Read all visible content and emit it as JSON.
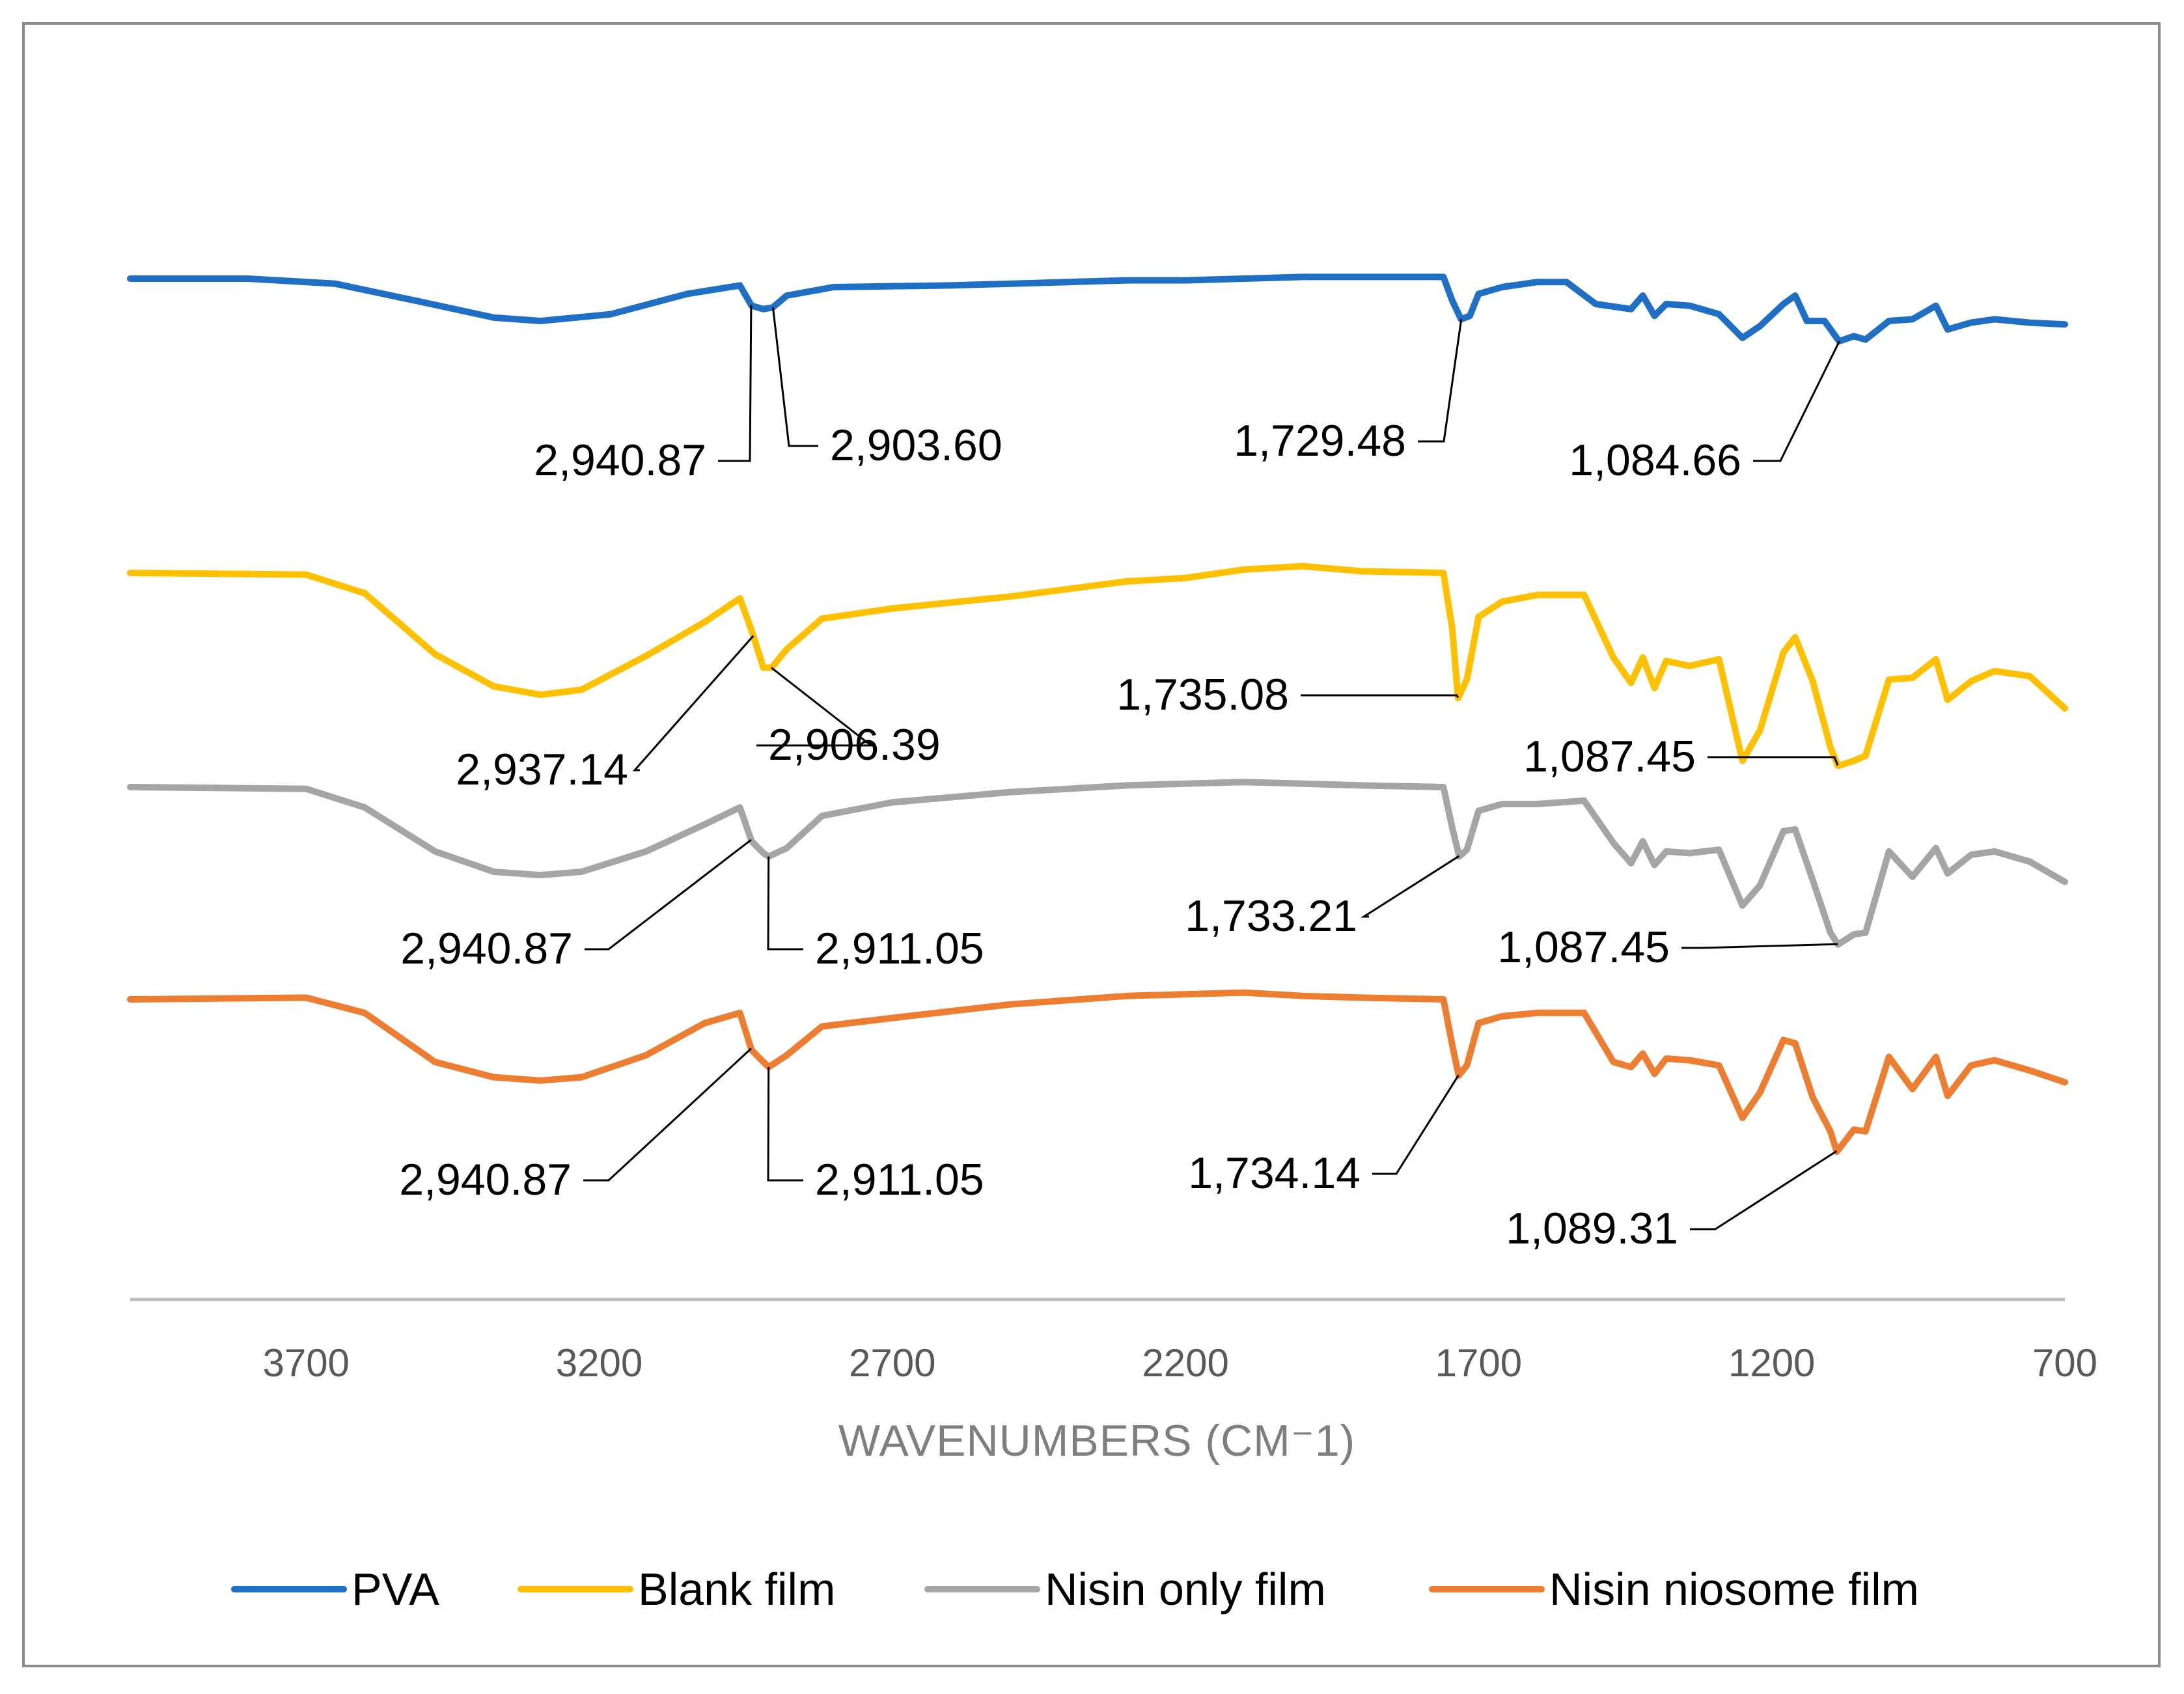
{
  "chart_data": {
    "type": "line",
    "title": "",
    "xlabel": "WAVENUMBERS  (CM⁻1)",
    "ylabel": "",
    "xlim": [
      4000,
      700
    ],
    "x_reversed": true,
    "xticks": [
      3700,
      3200,
      2700,
      2200,
      1700,
      1200,
      700
    ],
    "xtick_labels": [
      "3700",
      "3200",
      "2700",
      "2200",
      "1700",
      "1200",
      "700"
    ],
    "grid": false,
    "legend_position": "bottom",
    "y_units": "transmittance (arbitrary, vertically offset)",
    "series": [
      {
        "name": "PVA",
        "color": "#1f6fc5",
        "points": [
          [
            4000,
            0.0
          ],
          [
            3800,
            0.0
          ],
          [
            3650,
            -0.3
          ],
          [
            3500,
            -1.4
          ],
          [
            3380,
            -2.3
          ],
          [
            3300,
            -2.5
          ],
          [
            3180,
            -2.1
          ],
          [
            3050,
            -0.9
          ],
          [
            2960,
            -0.4
          ],
          [
            2940,
            -1.6
          ],
          [
            2920,
            -1.8
          ],
          [
            2904,
            -1.7
          ],
          [
            2880,
            -1.0
          ],
          [
            2800,
            -0.5
          ],
          [
            2600,
            -0.4
          ],
          [
            2400,
            -0.2
          ],
          [
            2300,
            -0.1
          ],
          [
            2200,
            -0.1
          ],
          [
            2100,
            0.0
          ],
          [
            2000,
            0.1
          ],
          [
            1900,
            0.1
          ],
          [
            1760,
            0.1
          ],
          [
            1745,
            -1.3
          ],
          [
            1730,
            -2.4
          ],
          [
            1715,
            -2.2
          ],
          [
            1700,
            -0.9
          ],
          [
            1660,
            -0.5
          ],
          [
            1600,
            -0.2
          ],
          [
            1550,
            -0.2
          ],
          [
            1500,
            -1.5
          ],
          [
            1440,
            -1.8
          ],
          [
            1420,
            -1.0
          ],
          [
            1400,
            -2.2
          ],
          [
            1380,
            -1.5
          ],
          [
            1340,
            -1.6
          ],
          [
            1290,
            -2.1
          ],
          [
            1250,
            -3.5
          ],
          [
            1220,
            -2.8
          ],
          [
            1180,
            -1.5
          ],
          [
            1160,
            -1.0
          ],
          [
            1140,
            -2.5
          ],
          [
            1110,
            -2.5
          ],
          [
            1085,
            -3.7
          ],
          [
            1060,
            -3.4
          ],
          [
            1040,
            -3.6
          ],
          [
            1000,
            -2.5
          ],
          [
            960,
            -2.4
          ],
          [
            920,
            -1.6
          ],
          [
            900,
            -3.0
          ],
          [
            860,
            -2.6
          ],
          [
            820,
            -2.4
          ],
          [
            760,
            -2.6
          ],
          [
            700,
            -2.7
          ]
        ],
        "annotations": [
          {
            "label": "2,940.87",
            "x": 2940.87
          },
          {
            "label": "2,903.60",
            "x": 2903.6
          },
          {
            "label": "1,729.48",
            "x": 1729.48
          },
          {
            "label": "1,084.66",
            "x": 1084.66
          }
        ]
      },
      {
        "name": "Blank film",
        "color": "#ffc000",
        "points": [
          [
            4000,
            0.0
          ],
          [
            3700,
            -0.1
          ],
          [
            3600,
            -1.2
          ],
          [
            3480,
            -4.8
          ],
          [
            3380,
            -6.7
          ],
          [
            3300,
            -7.2
          ],
          [
            3230,
            -6.9
          ],
          [
            3120,
            -4.9
          ],
          [
            3020,
            -2.9
          ],
          [
            2960,
            -1.5
          ],
          [
            2940,
            -3.4
          ],
          [
            2920,
            -5.6
          ],
          [
            2906,
            -5.6
          ],
          [
            2880,
            -4.5
          ],
          [
            2820,
            -2.7
          ],
          [
            2700,
            -2.1
          ],
          [
            2500,
            -1.4
          ],
          [
            2300,
            -0.5
          ],
          [
            2200,
            -0.3
          ],
          [
            2100,
            0.2
          ],
          [
            2000,
            0.4
          ],
          [
            1900,
            0.1
          ],
          [
            1760,
            0.0
          ],
          [
            1745,
            -3.3
          ],
          [
            1735,
            -7.4
          ],
          [
            1720,
            -6.3
          ],
          [
            1700,
            -2.6
          ],
          [
            1660,
            -1.7
          ],
          [
            1600,
            -1.3
          ],
          [
            1520,
            -1.3
          ],
          [
            1470,
            -5.0
          ],
          [
            1440,
            -6.5
          ],
          [
            1420,
            -5.0
          ],
          [
            1400,
            -6.8
          ],
          [
            1380,
            -5.2
          ],
          [
            1340,
            -5.5
          ],
          [
            1290,
            -5.1
          ],
          [
            1250,
            -11.1
          ],
          [
            1220,
            -9.3
          ],
          [
            1180,
            -4.7
          ],
          [
            1160,
            -3.8
          ],
          [
            1130,
            -6.4
          ],
          [
            1100,
            -10.3
          ],
          [
            1087,
            -11.4
          ],
          [
            1060,
            -11.1
          ],
          [
            1040,
            -10.8
          ],
          [
            1000,
            -6.3
          ],
          [
            960,
            -6.2
          ],
          [
            920,
            -5.1
          ],
          [
            900,
            -7.5
          ],
          [
            860,
            -6.4
          ],
          [
            820,
            -5.8
          ],
          [
            760,
            -6.1
          ],
          [
            700,
            -8.0
          ]
        ],
        "annotations": [
          {
            "label": "2,937.14",
            "x": 2937.14
          },
          {
            "label": "2,906.39",
            "x": 2906.39
          },
          {
            "label": "1,735.08",
            "x": 1735.08
          },
          {
            "label": "1,087.45",
            "x": 1087.45
          }
        ]
      },
      {
        "name": "Nisin only film",
        "color": "#a5a5a5",
        "points": [
          [
            4000,
            0.0
          ],
          [
            3700,
            -0.1
          ],
          [
            3600,
            -1.2
          ],
          [
            3480,
            -3.8
          ],
          [
            3380,
            -5.0
          ],
          [
            3300,
            -5.2
          ],
          [
            3230,
            -5.0
          ],
          [
            3120,
            -3.8
          ],
          [
            3020,
            -2.2
          ],
          [
            2960,
            -1.2
          ],
          [
            2940,
            -3.2
          ],
          [
            2920,
            -3.9
          ],
          [
            2911,
            -4.1
          ],
          [
            2880,
            -3.6
          ],
          [
            2820,
            -1.7
          ],
          [
            2700,
            -0.9
          ],
          [
            2500,
            -0.3
          ],
          [
            2300,
            0.1
          ],
          [
            2200,
            0.2
          ],
          [
            2100,
            0.3
          ],
          [
            2000,
            0.2
          ],
          [
            1900,
            0.1
          ],
          [
            1760,
            0.0
          ],
          [
            1745,
            -2.4
          ],
          [
            1733,
            -4.1
          ],
          [
            1720,
            -3.7
          ],
          [
            1700,
            -1.4
          ],
          [
            1660,
            -1.0
          ],
          [
            1600,
            -1.0
          ],
          [
            1520,
            -0.8
          ],
          [
            1470,
            -3.3
          ],
          [
            1440,
            -4.5
          ],
          [
            1420,
            -3.2
          ],
          [
            1400,
            -4.6
          ],
          [
            1380,
            -3.8
          ],
          [
            1340,
            -3.9
          ],
          [
            1290,
            -3.7
          ],
          [
            1250,
            -7.0
          ],
          [
            1220,
            -5.8
          ],
          [
            1180,
            -2.6
          ],
          [
            1160,
            -2.5
          ],
          [
            1130,
            -5.5
          ],
          [
            1100,
            -8.6
          ],
          [
            1087,
            -9.3
          ],
          [
            1060,
            -8.7
          ],
          [
            1040,
            -8.6
          ],
          [
            1000,
            -3.8
          ],
          [
            960,
            -5.3
          ],
          [
            920,
            -3.6
          ],
          [
            900,
            -5.1
          ],
          [
            860,
            -4.0
          ],
          [
            820,
            -3.8
          ],
          [
            760,
            -4.4
          ],
          [
            700,
            -5.6
          ]
        ],
        "annotations": [
          {
            "label": "2,940.87",
            "x": 2940.87
          },
          {
            "label": "2,911.05",
            "x": 2911.05
          },
          {
            "label": "1,733.21",
            "x": 1733.21
          },
          {
            "label": "1,087.45",
            "x": 1087.45
          }
        ]
      },
      {
        "name": "Nisin niosome film",
        "color": "#ed7d31",
        "points": [
          [
            4000,
            0.0
          ],
          [
            3700,
            0.1
          ],
          [
            3600,
            -0.8
          ],
          [
            3480,
            -3.7
          ],
          [
            3380,
            -4.6
          ],
          [
            3300,
            -4.8
          ],
          [
            3230,
            -4.6
          ],
          [
            3120,
            -3.3
          ],
          [
            3020,
            -1.4
          ],
          [
            2960,
            -0.8
          ],
          [
            2940,
            -3.0
          ],
          [
            2920,
            -3.7
          ],
          [
            2911,
            -4.0
          ],
          [
            2880,
            -3.3
          ],
          [
            2820,
            -1.6
          ],
          [
            2700,
            -1.1
          ],
          [
            2500,
            -0.3
          ],
          [
            2300,
            0.2
          ],
          [
            2200,
            0.3
          ],
          [
            2100,
            0.4
          ],
          [
            2000,
            0.2
          ],
          [
            1900,
            0.1
          ],
          [
            1760,
            0.0
          ],
          [
            1745,
            -2.7
          ],
          [
            1734,
            -4.5
          ],
          [
            1720,
            -3.9
          ],
          [
            1700,
            -1.4
          ],
          [
            1660,
            -1.0
          ],
          [
            1600,
            -0.8
          ],
          [
            1520,
            -0.8
          ],
          [
            1470,
            -3.7
          ],
          [
            1440,
            -4.0
          ],
          [
            1420,
            -3.2
          ],
          [
            1400,
            -4.4
          ],
          [
            1380,
            -3.5
          ],
          [
            1340,
            -3.6
          ],
          [
            1290,
            -3.9
          ],
          [
            1250,
            -7.0
          ],
          [
            1220,
            -5.5
          ],
          [
            1180,
            -2.4
          ],
          [
            1160,
            -2.6
          ],
          [
            1130,
            -5.8
          ],
          [
            1100,
            -7.8
          ],
          [
            1089,
            -9.0
          ],
          [
            1060,
            -7.7
          ],
          [
            1040,
            -7.8
          ],
          [
            1000,
            -3.4
          ],
          [
            960,
            -5.3
          ],
          [
            920,
            -3.4
          ],
          [
            900,
            -5.7
          ],
          [
            860,
            -3.9
          ],
          [
            820,
            -3.6
          ],
          [
            760,
            -4.2
          ],
          [
            700,
            -4.9
          ]
        ],
        "annotations": [
          {
            "label": "2,940.87",
            "x": 2940.87
          },
          {
            "label": "2,911.05",
            "x": 2911.05
          },
          {
            "label": "1,734.14",
            "x": 1734.14
          },
          {
            "label": "1,089.31",
            "x": 1089.31
          }
        ]
      }
    ]
  }
}
